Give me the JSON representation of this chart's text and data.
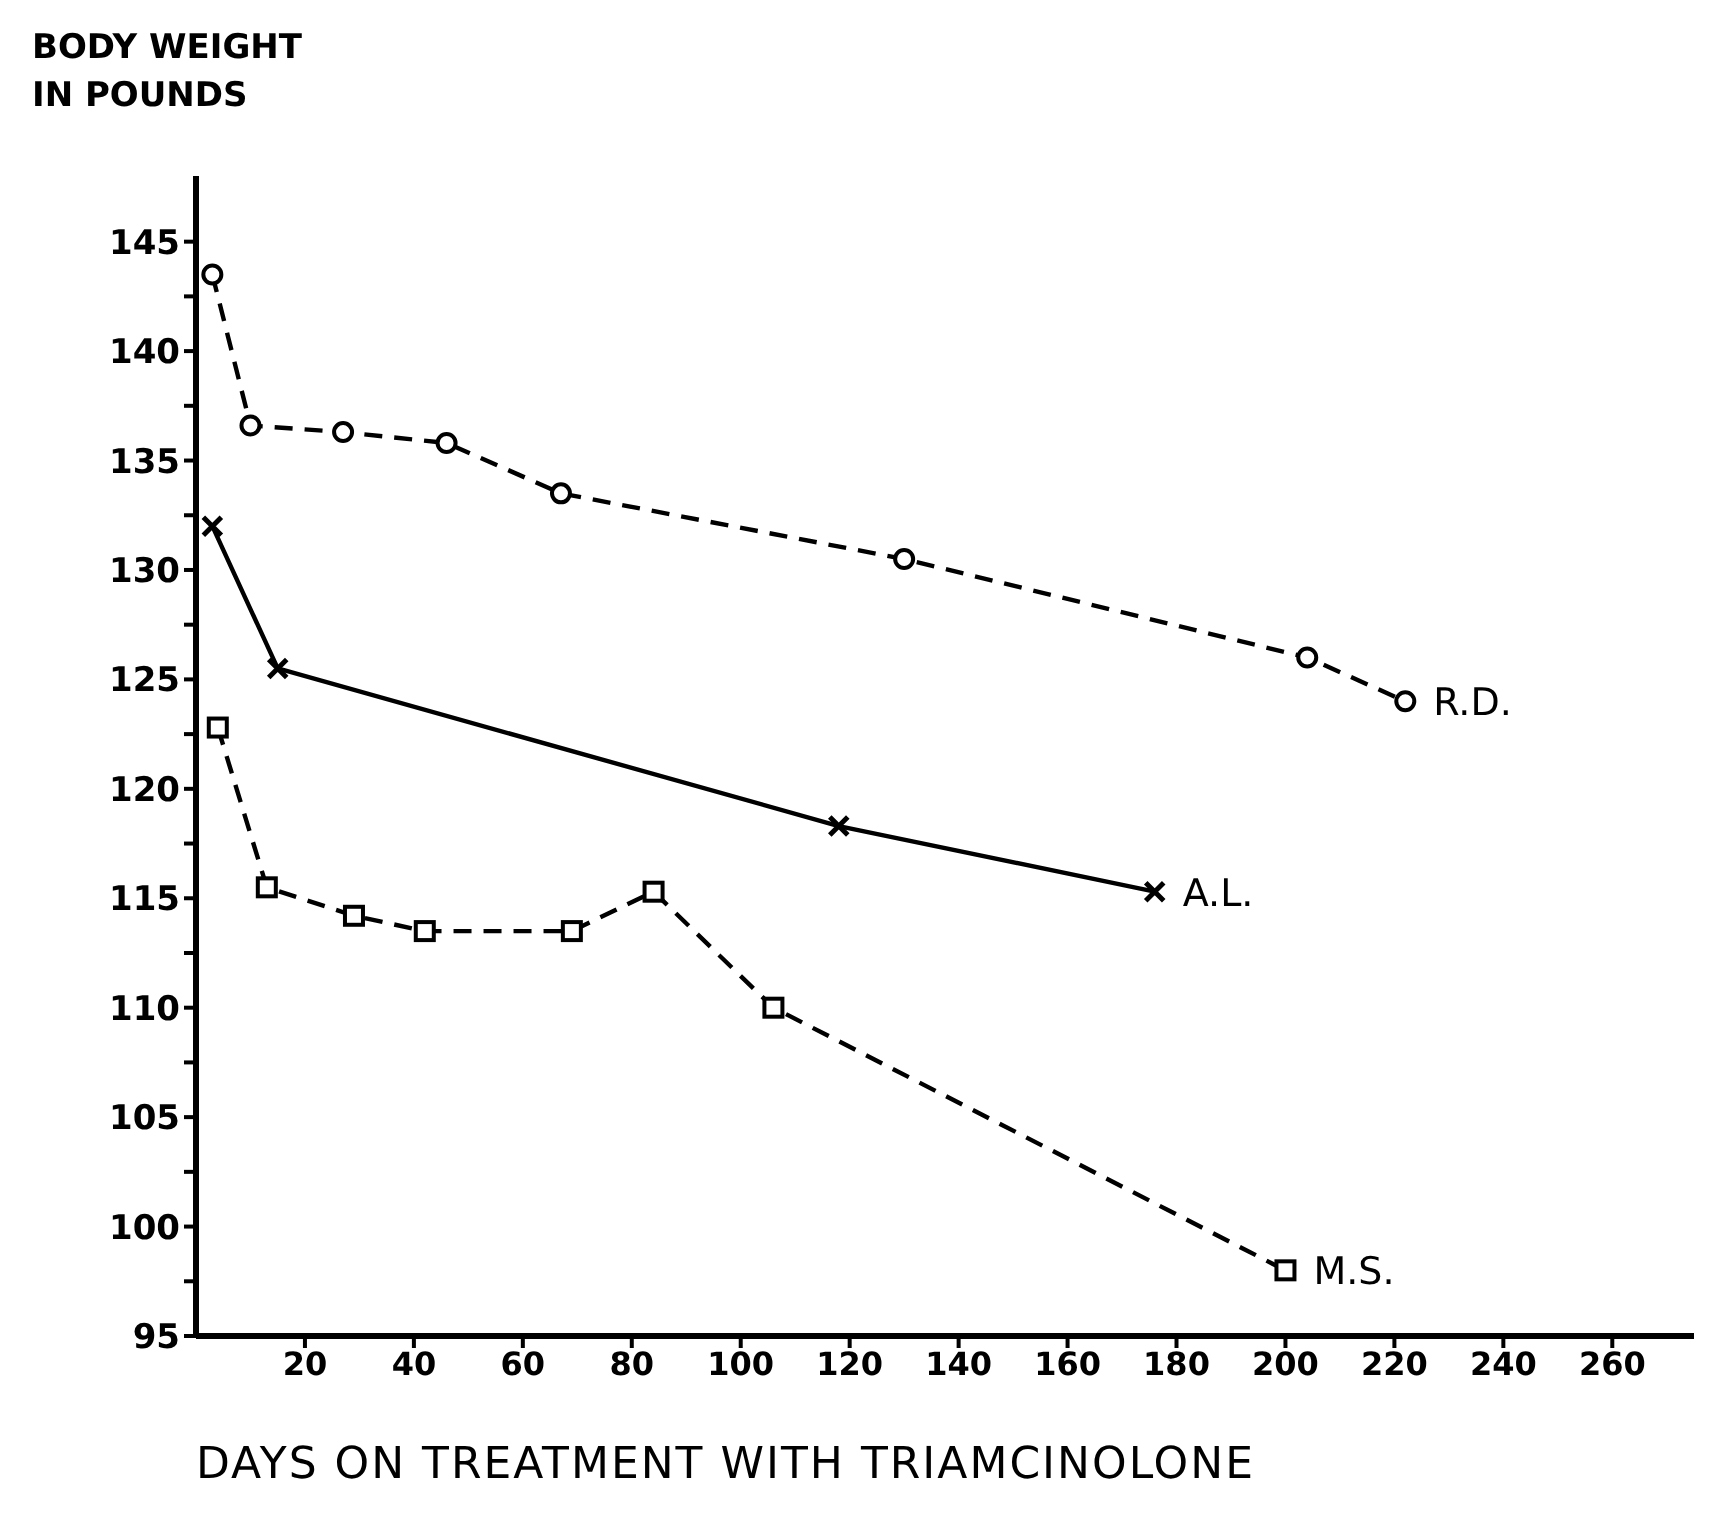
{
  "chart_data": {
    "type": "line",
    "ylabel": "BODY WEIGHT IN POUNDS",
    "xlabel": "DAYS ON TREATMENT WITH TRIAMCINOLONE",
    "xlim": [
      0,
      275
    ],
    "xticks": [
      20,
      40,
      60,
      80,
      100,
      120,
      140,
      160,
      180,
      200,
      220,
      240,
      260
    ],
    "ylim": [
      95,
      148
    ],
    "yticks": [
      95,
      {
        "value": 97.5,
        "label": null
      },
      100,
      {
        "value": 102.5,
        "label": null
      },
      105,
      {
        "value": 107.5,
        "label": null
      },
      110,
      {
        "value": 112.5,
        "label": null
      },
      115,
      {
        "value": 117.5,
        "label": null
      },
      120,
      {
        "value": 122.5,
        "label": null
      },
      125,
      {
        "value": 127.5,
        "label": null
      },
      130,
      {
        "value": 132.5,
        "label": null
      },
      135,
      {
        "value": 137.5,
        "label": null
      },
      140,
      {
        "value": 142.5,
        "label": null
      },
      145
    ],
    "series": [
      {
        "name": "R.D.",
        "color": "#000000",
        "marker": "circle",
        "line_style": "dashed",
        "x": [
          3,
          10,
          27,
          46,
          67,
          130,
          204,
          222
        ],
        "values": [
          143.5,
          136.6,
          136.3,
          135.8,
          133.5,
          130.5,
          126,
          124
        ]
      },
      {
        "name": "A.L.",
        "color": "#000000",
        "marker": "cross",
        "line_style": "solid",
        "x": [
          3,
          15,
          118,
          176
        ],
        "values": [
          132,
          125.5,
          118.3,
          115.3
        ]
      },
      {
        "name": "M.S.",
        "color": "#000000",
        "marker": "square",
        "line_style": "dashed",
        "x": [
          4,
          13,
          29,
          42,
          69,
          84,
          106,
          200
        ],
        "values": [
          122.8,
          115.5,
          114.2,
          113.5,
          113.5,
          115.3,
          110,
          98
        ]
      }
    ]
  }
}
